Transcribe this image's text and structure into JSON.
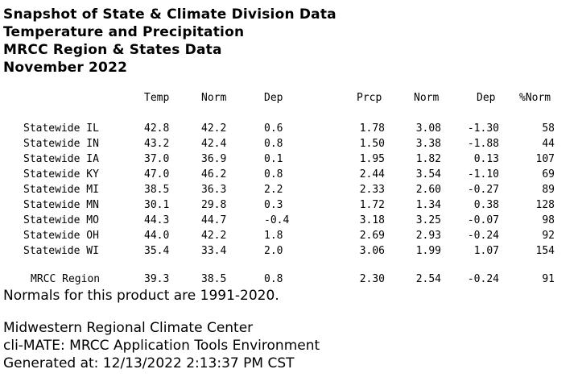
{
  "heading": {
    "line1": "Snapshot of State & Climate Division Data",
    "line2": "Temperature and Precipitation",
    "line3": "MRCC Region & States Data",
    "line4": "November 2022"
  },
  "table": {
    "headers": {
      "temp": "Temp",
      "norm": "Norm",
      "dep": "Dep",
      "prcp": "Prcp",
      "prcp_norm": "Norm",
      "prcp_dep": "Dep",
      "pct_norm": "%Norm"
    },
    "rows": [
      {
        "name": "Statewide IL",
        "temp": "42.8",
        "norm": "42.2",
        "dep": "0.6",
        "prcp": "1.78",
        "prcp_norm": "3.08",
        "prcp_dep": "-1.30",
        "pct_norm": "58"
      },
      {
        "name": "Statewide IN",
        "temp": "43.2",
        "norm": "42.4",
        "dep": "0.8",
        "prcp": "1.50",
        "prcp_norm": "3.38",
        "prcp_dep": "-1.88",
        "pct_norm": "44"
      },
      {
        "name": "Statewide IA",
        "temp": "37.0",
        "norm": "36.9",
        "dep": "0.1",
        "prcp": "1.95",
        "prcp_norm": "1.82",
        "prcp_dep": "0.13",
        "pct_norm": "107"
      },
      {
        "name": "Statewide KY",
        "temp": "47.0",
        "norm": "46.2",
        "dep": "0.8",
        "prcp": "2.44",
        "prcp_norm": "3.54",
        "prcp_dep": "-1.10",
        "pct_norm": "69"
      },
      {
        "name": "Statewide MI",
        "temp": "38.5",
        "norm": "36.3",
        "dep": "2.2",
        "prcp": "2.33",
        "prcp_norm": "2.60",
        "prcp_dep": "-0.27",
        "pct_norm": "89"
      },
      {
        "name": "Statewide MN",
        "temp": "30.1",
        "norm": "29.8",
        "dep": "0.3",
        "prcp": "1.72",
        "prcp_norm": "1.34",
        "prcp_dep": "0.38",
        "pct_norm": "128"
      },
      {
        "name": "Statewide MO",
        "temp": "44.3",
        "norm": "44.7",
        "dep": "-0.4",
        "prcp": "3.18",
        "prcp_norm": "3.25",
        "prcp_dep": "-0.07",
        "pct_norm": "98"
      },
      {
        "name": "Statewide OH",
        "temp": "44.0",
        "norm": "42.2",
        "dep": "1.8",
        "prcp": "2.69",
        "prcp_norm": "2.93",
        "prcp_dep": "-0.24",
        "pct_norm": "92"
      },
      {
        "name": "Statewide WI",
        "temp": "35.4",
        "norm": "33.4",
        "dep": "2.0",
        "prcp": "3.06",
        "prcp_norm": "1.99",
        "prcp_dep": "1.07",
        "pct_norm": "154"
      }
    ],
    "region": {
      "name": "MRCC Region",
      "temp": "39.3",
      "norm": "38.5",
      "dep": "0.8",
      "prcp": "2.30",
      "prcp_norm": "2.54",
      "prcp_dep": "-0.24",
      "pct_norm": "91"
    }
  },
  "footer": {
    "normals_note": "Normals for this product are 1991-2020.",
    "org": "Midwestern Regional Climate Center",
    "tool": "cli-MATE: MRCC Application Tools Environment",
    "generated": "Generated at: 12/13/2022 2:13:37 PM CST"
  }
}
